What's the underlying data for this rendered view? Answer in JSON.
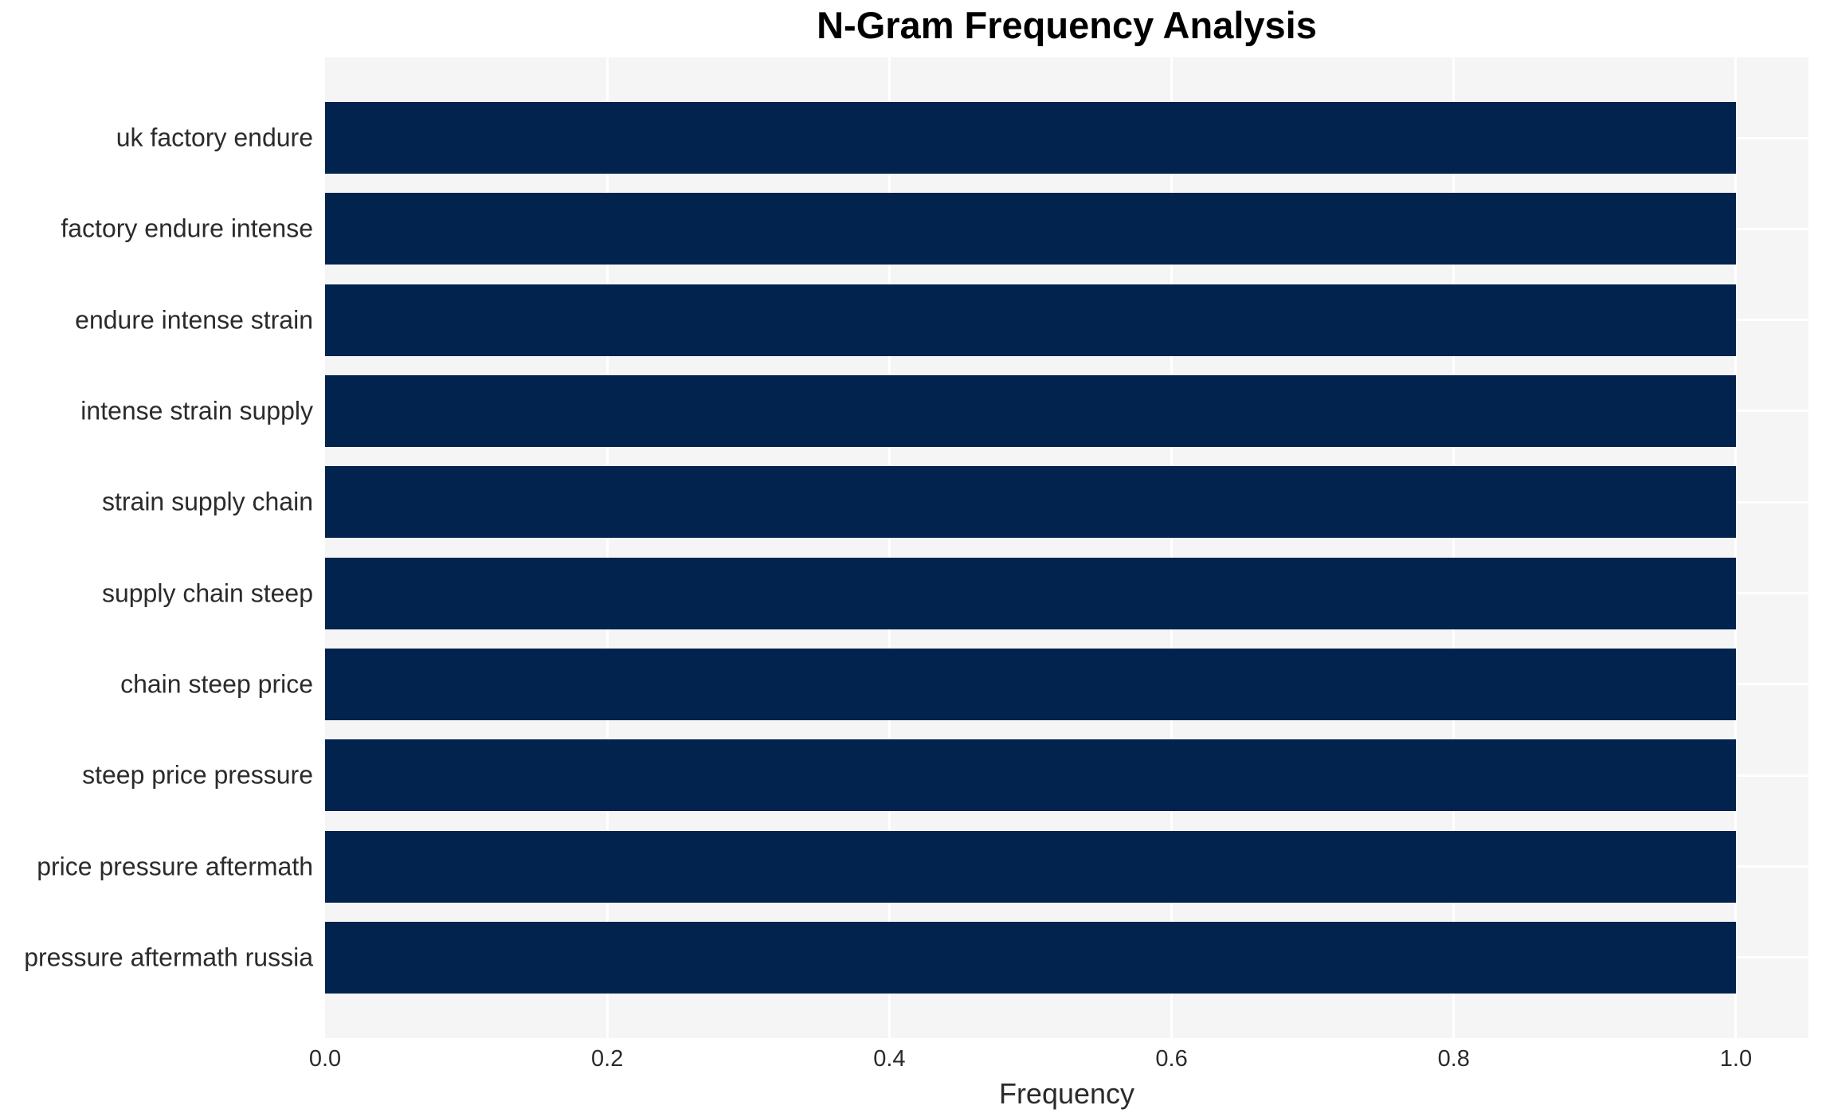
{
  "chart_data": {
    "type": "bar",
    "orientation": "horizontal",
    "title": "N-Gram Frequency Analysis",
    "xlabel": "Frequency",
    "ylabel": "",
    "categories": [
      "uk factory endure",
      "factory endure intense",
      "endure intense strain",
      "intense strain supply",
      "strain supply chain",
      "supply chain steep",
      "chain steep price",
      "steep price pressure",
      "price pressure aftermath",
      "pressure aftermath russia"
    ],
    "values": [
      1.0,
      1.0,
      1.0,
      1.0,
      1.0,
      1.0,
      1.0,
      1.0,
      1.0,
      1.0
    ],
    "xticks": [
      {
        "value": 0.0,
        "label": "0.0"
      },
      {
        "value": 0.2,
        "label": "0.2"
      },
      {
        "value": 0.4,
        "label": "0.4"
      },
      {
        "value": 0.6,
        "label": "0.6"
      },
      {
        "value": 0.8,
        "label": "0.8"
      },
      {
        "value": 1.0,
        "label": "1.0"
      }
    ],
    "xlim": [
      0,
      1.0514
    ],
    "grid": true,
    "legend": false,
    "colors": {
      "bar": "#02234d",
      "plot_background": "#f5f5f6",
      "gridline": "#ffffff",
      "tick_text": "#2b2b2b",
      "title_text": "#000000"
    }
  }
}
